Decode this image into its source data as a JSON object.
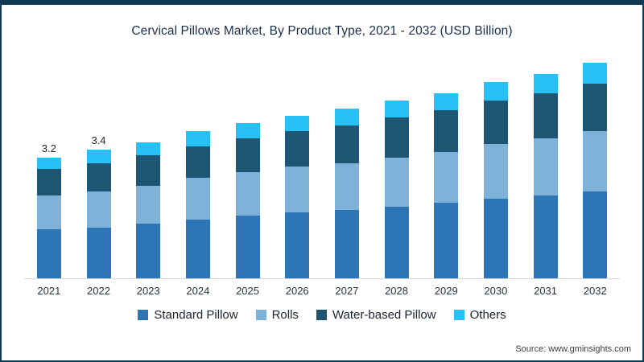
{
  "title": "Cervical Pillows Market, By Product Type, 2021 - 2032 (USD Billion)",
  "source": "Source: www.gminsights.com",
  "chart_data": {
    "type": "bar",
    "stacked": true,
    "title": "Cervical Pillows Market, By Product Type, 2021 - 2032 (USD Billion)",
    "xlabel": "",
    "ylabel": "USD Billion",
    "grid": false,
    "legend_position": "bottom",
    "categories": [
      "2021",
      "2022",
      "2023",
      "2024",
      "2025",
      "2026",
      "2027",
      "2028",
      "2029",
      "2030",
      "2031",
      "2032"
    ],
    "series": [
      {
        "name": "Standard Pillow",
        "color": "#2e75b6",
        "values": [
          1.3,
          1.35,
          1.45,
          1.55,
          1.65,
          1.75,
          1.8,
          1.9,
          2.0,
          2.1,
          2.2,
          2.3
        ]
      },
      {
        "name": "Rolls",
        "color": "#7fb2d8",
        "values": [
          0.9,
          0.95,
          1.0,
          1.1,
          1.15,
          1.2,
          1.25,
          1.3,
          1.35,
          1.45,
          1.5,
          1.6
        ]
      },
      {
        "name": "Water-based Pillow",
        "color": "#1d5673",
        "values": [
          0.7,
          0.75,
          0.8,
          0.85,
          0.9,
          0.95,
          1.0,
          1.05,
          1.1,
          1.15,
          1.2,
          1.25
        ]
      },
      {
        "name": "Others",
        "color": "#27c0f5",
        "values": [
          0.3,
          0.35,
          0.35,
          0.4,
          0.4,
          0.4,
          0.45,
          0.45,
          0.45,
          0.5,
          0.5,
          0.55
        ]
      }
    ],
    "totals": [
      3.2,
      3.4,
      3.6,
      3.9,
      4.1,
      4.3,
      4.5,
      4.7,
      4.9,
      5.2,
      5.4,
      5.7
    ],
    "data_labels": {
      "2021": "3.2",
      "2022": "3.4"
    },
    "ylim": [
      0,
      6.2
    ]
  },
  "legend": {
    "items": [
      "Standard Pillow",
      "Rolls",
      "Water-based Pillow",
      "Others"
    ]
  }
}
